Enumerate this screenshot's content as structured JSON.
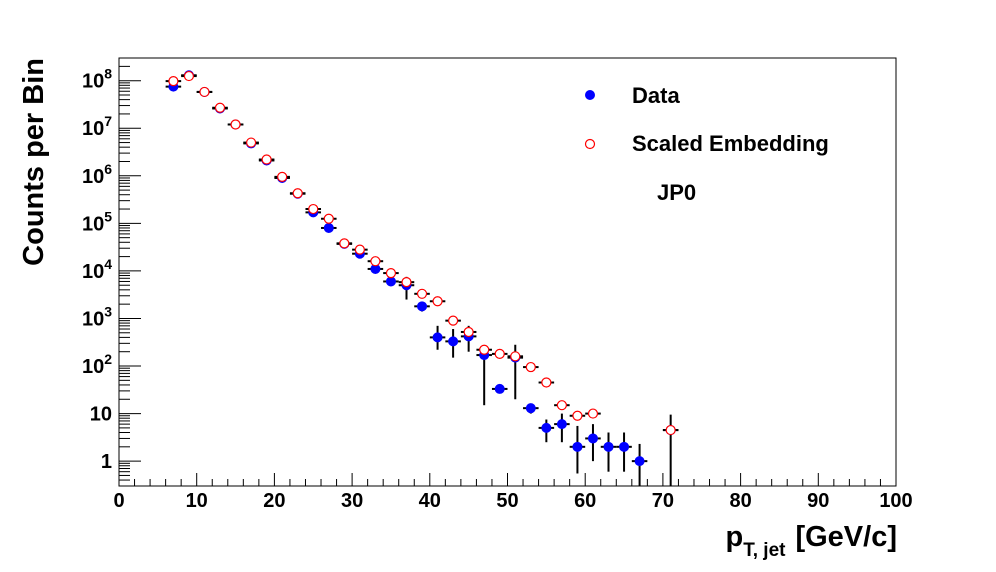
{
  "chart_data": {
    "type": "scatter",
    "xlabel": "p",
    "xlabel_sub": "T, jet",
    "xlabel_units": "[GeV/c]",
    "ylabel": "Counts per Bin",
    "xlim": [
      0,
      100
    ],
    "ylim": [
      0.3,
      300000000
    ],
    "yscale": "log",
    "grid": false,
    "legend_position": "top-right",
    "x_ticks": [
      0,
      10,
      20,
      30,
      40,
      50,
      60,
      70,
      80,
      90,
      100
    ],
    "y_ticks": [
      {
        "value": 1,
        "label": "1"
      },
      {
        "value": 10,
        "label": "10"
      },
      {
        "value": 100,
        "base": "10",
        "exp": "2"
      },
      {
        "value": 1000,
        "base": "10",
        "exp": "3"
      },
      {
        "value": 10000,
        "base": "10",
        "exp": "4"
      },
      {
        "value": 100000,
        "base": "10",
        "exp": "5"
      },
      {
        "value": 1000000,
        "base": "10",
        "exp": "6"
      },
      {
        "value": 10000000,
        "base": "10",
        "exp": "7"
      },
      {
        "value": 100000000,
        "base": "10",
        "exp": "8"
      }
    ],
    "annotation": "JP0",
    "series": [
      {
        "name": "Data",
        "marker": "filled-circle",
        "color": "#0000ff",
        "points": [
          {
            "x": 7,
            "y": 75000000,
            "lo": 75000000,
            "hi": 75000000
          },
          {
            "x": 9,
            "y": 130000000,
            "lo": 130000000,
            "hi": 130000000
          },
          {
            "x": 11,
            "y": 58000000,
            "lo": 58000000,
            "hi": 58000000
          },
          {
            "x": 13,
            "y": 26000000,
            "lo": 26000000,
            "hi": 26000000
          },
          {
            "x": 15,
            "y": 12000000,
            "lo": 12000000,
            "hi": 12000000
          },
          {
            "x": 17,
            "y": 4800000,
            "lo": 4800000,
            "hi": 4800000
          },
          {
            "x": 19,
            "y": 2100000,
            "lo": 2100000,
            "hi": 2100000
          },
          {
            "x": 21,
            "y": 900000,
            "lo": 900000,
            "hi": 900000
          },
          {
            "x": 23,
            "y": 420000,
            "lo": 420000,
            "hi": 420000
          },
          {
            "x": 25,
            "y": 170000,
            "lo": 150000,
            "hi": 190000
          },
          {
            "x": 27,
            "y": 80000,
            "lo": 70000,
            "hi": 90000
          },
          {
            "x": 29,
            "y": 37000,
            "lo": 35000,
            "hi": 39000
          },
          {
            "x": 31,
            "y": 23000,
            "lo": 21000,
            "hi": 25000
          },
          {
            "x": 33,
            "y": 11000,
            "lo": 9000,
            "hi": 13000
          },
          {
            "x": 35,
            "y": 6000,
            "lo": 5000,
            "hi": 7000
          },
          {
            "x": 37,
            "y": 5000,
            "lo": 2500,
            "hi": 7500
          },
          {
            "x": 39,
            "y": 1800,
            "lo": 1400,
            "hi": 2200
          },
          {
            "x": 41,
            "y": 400,
            "lo": 220,
            "hi": 700
          },
          {
            "x": 43,
            "y": 330,
            "lo": 150,
            "hi": 600
          },
          {
            "x": 45,
            "y": 420,
            "lo": 200,
            "hi": 700
          },
          {
            "x": 47,
            "y": 170,
            "lo": 15,
            "hi": 260
          },
          {
            "x": 49,
            "y": 33,
            "lo": 33,
            "hi": 33
          },
          {
            "x": 51,
            "y": 150,
            "lo": 20,
            "hi": 280
          },
          {
            "x": 53,
            "y": 13,
            "lo": 10,
            "hi": 16
          },
          {
            "x": 55,
            "y": 5,
            "lo": 2.5,
            "hi": 7.5
          },
          {
            "x": 57,
            "y": 6,
            "lo": 2.5,
            "hi": 10
          },
          {
            "x": 59,
            "y": 2,
            "lo": 0.55,
            "hi": 5.5
          },
          {
            "x": 61,
            "y": 3,
            "lo": 1,
            "hi": 6
          },
          {
            "x": 63,
            "y": 2,
            "lo": 0.6,
            "hi": 4
          },
          {
            "x": 65,
            "y": 2,
            "lo": 0.6,
            "hi": 4
          },
          {
            "x": 67,
            "y": 1,
            "lo": 0.3,
            "hi": 2.3
          },
          {
            "x": 71,
            "y": 4.5,
            "lo": 0.3,
            "hi": 9.5
          }
        ]
      },
      {
        "name": "Scaled Embedding",
        "marker": "open-circle",
        "color": "#ff0000",
        "points": [
          {
            "x": 7,
            "y": 98000000
          },
          {
            "x": 9,
            "y": 125000000
          },
          {
            "x": 11,
            "y": 58000000
          },
          {
            "x": 13,
            "y": 27000000
          },
          {
            "x": 15,
            "y": 12000000
          },
          {
            "x": 17,
            "y": 5000000
          },
          {
            "x": 19,
            "y": 2200000
          },
          {
            "x": 21,
            "y": 950000
          },
          {
            "x": 23,
            "y": 430000
          },
          {
            "x": 25,
            "y": 200000
          },
          {
            "x": 27,
            "y": 125000
          },
          {
            "x": 29,
            "y": 38000
          },
          {
            "x": 31,
            "y": 28000
          },
          {
            "x": 33,
            "y": 16000
          },
          {
            "x": 35,
            "y": 9000
          },
          {
            "x": 37,
            "y": 5800
          },
          {
            "x": 39,
            "y": 3300
          },
          {
            "x": 41,
            "y": 2300
          },
          {
            "x": 43,
            "y": 900
          },
          {
            "x": 45,
            "y": 520
          },
          {
            "x": 47,
            "y": 220
          },
          {
            "x": 49,
            "y": 180
          },
          {
            "x": 51,
            "y": 160
          },
          {
            "x": 53,
            "y": 95
          },
          {
            "x": 55,
            "y": 45
          },
          {
            "x": 57,
            "y": 15
          },
          {
            "x": 59,
            "y": 9
          },
          {
            "x": 61,
            "y": 10
          },
          {
            "x": 71,
            "y": 4.5
          }
        ]
      }
    ]
  }
}
